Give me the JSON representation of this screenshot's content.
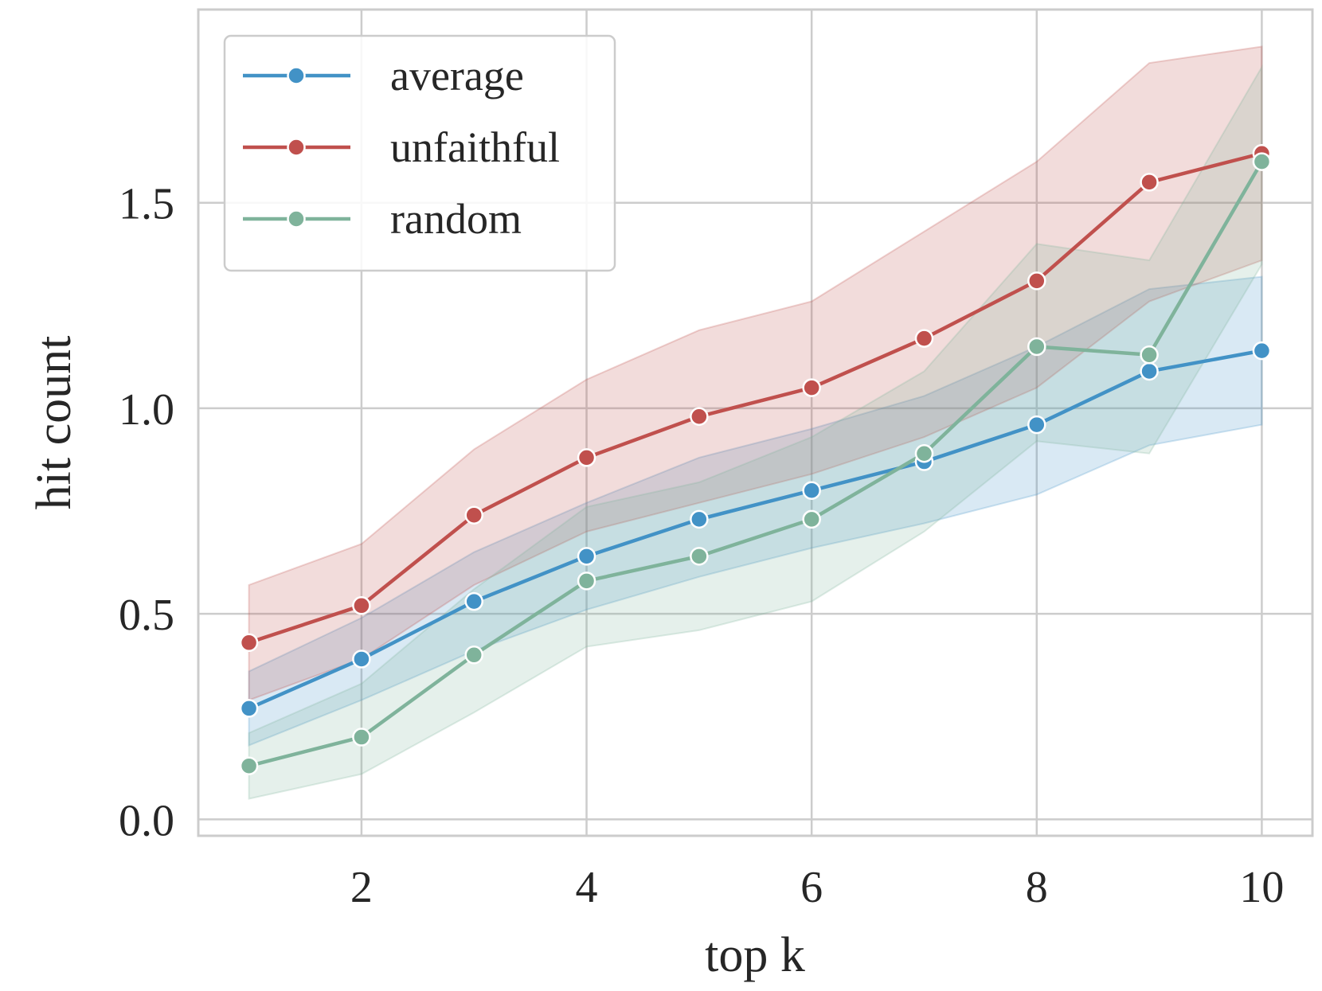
{
  "chart_data": {
    "type": "line",
    "xlabel": "top k",
    "ylabel": "hit count",
    "x": [
      1,
      2,
      3,
      4,
      5,
      6,
      7,
      8,
      9,
      10
    ],
    "xticks": [
      2,
      4,
      6,
      8,
      10
    ],
    "xtick_labels": [
      "2",
      "4",
      "6",
      "8",
      "10"
    ],
    "yticks": [
      0.0,
      0.5,
      1.0,
      1.5
    ],
    "ytick_labels": [
      "0.0",
      "0.5",
      "1.0",
      "1.5"
    ],
    "xlim": [
      0.55,
      10.45
    ],
    "ylim": [
      -0.04,
      1.97
    ],
    "grid": true,
    "legend_position": "top-left",
    "series": [
      {
        "name": "average",
        "color": "#4292c6",
        "values": [
          0.27,
          0.39,
          0.53,
          0.64,
          0.73,
          0.8,
          0.87,
          0.96,
          1.09,
          1.14
        ],
        "ci_lower": [
          0.18,
          0.29,
          0.41,
          0.51,
          0.59,
          0.66,
          0.72,
          0.79,
          0.91,
          0.96
        ],
        "ci_upper": [
          0.36,
          0.49,
          0.65,
          0.77,
          0.88,
          0.95,
          1.03,
          1.15,
          1.29,
          1.32
        ]
      },
      {
        "name": "unfaithful",
        "color": "#c0504d",
        "values": [
          0.43,
          0.52,
          0.74,
          0.88,
          0.98,
          1.05,
          1.17,
          1.31,
          1.55,
          1.62
        ],
        "ci_lower": [
          0.29,
          0.39,
          0.57,
          0.7,
          0.77,
          0.84,
          0.93,
          1.05,
          1.26,
          1.36
        ],
        "ci_upper": [
          0.57,
          0.67,
          0.9,
          1.07,
          1.19,
          1.26,
          1.43,
          1.6,
          1.84,
          1.88
        ]
      },
      {
        "name": "random",
        "color": "#7fb39b",
        "values": [
          0.13,
          0.2,
          0.4,
          0.58,
          0.64,
          0.73,
          0.89,
          1.15,
          1.13,
          1.6
        ],
        "ci_lower": [
          0.05,
          0.11,
          0.26,
          0.42,
          0.46,
          0.53,
          0.7,
          0.92,
          0.89,
          1.35
        ],
        "ci_upper": [
          0.21,
          0.33,
          0.56,
          0.76,
          0.82,
          0.93,
          1.09,
          1.4,
          1.36,
          1.83
        ]
      }
    ]
  }
}
